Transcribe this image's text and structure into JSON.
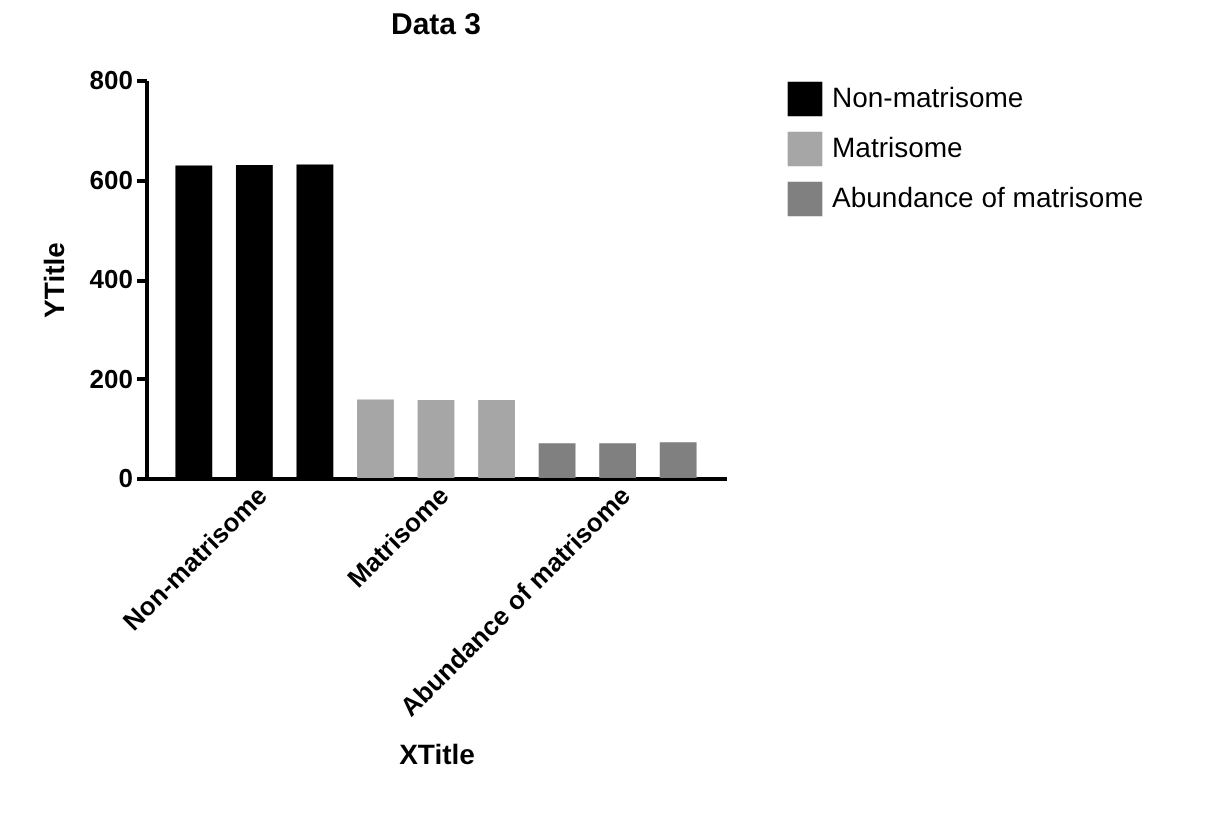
{
  "chart_data": {
    "type": "bar",
    "title": "Data 3",
    "xlabel": "XTitle",
    "ylabel": "YTitle",
    "categories": [
      null,
      "Non-matrisome",
      null,
      null,
      "Matrisome",
      null,
      null,
      "Abundance of matrisome",
      null
    ],
    "series": [
      {
        "name": "Non-matrisome",
        "color": "#000000",
        "values": [
          628,
          629,
          630,
          null,
          null,
          null,
          null,
          null,
          null
        ]
      },
      {
        "name": "Matrisome",
        "color": "#a6a6a6",
        "values": [
          null,
          null,
          null,
          158,
          157,
          157,
          null,
          null,
          null
        ]
      },
      {
        "name": "Abundance of matrisome",
        "color": "#808080",
        "values": [
          null,
          null,
          null,
          null,
          null,
          null,
          70,
          70,
          72
        ]
      }
    ],
    "ylim": [
      0,
      800
    ],
    "yticks": [
      0,
      200,
      400,
      600,
      800
    ],
    "grid": false,
    "legend": "top right"
  }
}
